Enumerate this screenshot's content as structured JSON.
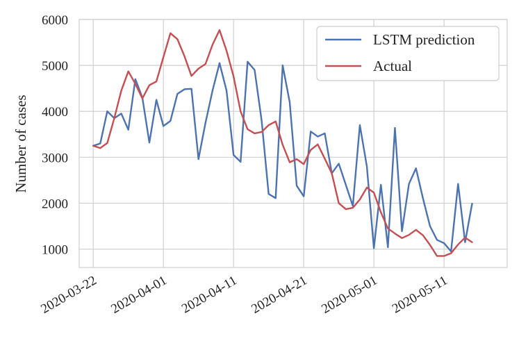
{
  "chart_data": {
    "type": "line",
    "title": "",
    "xlabel": "",
    "ylabel": "Number of cases",
    "x_start": "2020-03-22",
    "x_tick_labels": [
      "2020-03-22",
      "2020-04-01",
      "2020-04-11",
      "2020-04-21",
      "2020-05-01",
      "2020-05-11"
    ],
    "y_ticks": [
      1000,
      2000,
      3000,
      4000,
      5000,
      6000
    ],
    "ylim": [
      600,
      6000
    ],
    "xlim": [
      "2020-03-20",
      "2020-05-20"
    ],
    "grid": true,
    "legend_position": "top-right",
    "series": [
      {
        "name": "LSTM prediction",
        "color": "#4c72b0",
        "values": [
          3250,
          3300,
          4000,
          3850,
          3950,
          3600,
          4700,
          4300,
          3320,
          4250,
          3680,
          3790,
          4380,
          4480,
          4490,
          2960,
          3750,
          4450,
          5050,
          4450,
          3050,
          2900,
          5080,
          4900,
          3800,
          2200,
          2110,
          5000,
          4200,
          2380,
          2150,
          3560,
          3450,
          3520,
          2650,
          2860,
          2400,
          1940,
          3700,
          2800,
          1020,
          2400,
          1040,
          3640,
          1390,
          2420,
          2760,
          2100,
          1500,
          1200,
          1130,
          950,
          2420,
          1150,
          1990
        ]
      },
      {
        "name": "Actual",
        "color": "#c44e52",
        "values": [
          3250,
          3200,
          3310,
          3850,
          4450,
          4870,
          4600,
          4280,
          4570,
          4650,
          5180,
          5700,
          5570,
          5200,
          4770,
          4930,
          5030,
          5450,
          5770,
          5320,
          4760,
          4000,
          3610,
          3520,
          3550,
          3700,
          3780,
          3270,
          2890,
          2960,
          2850,
          3160,
          3280,
          2970,
          2650,
          2000,
          1870,
          1900,
          2080,
          2340,
          2230,
          1800,
          1450,
          1340,
          1240,
          1310,
          1420,
          1300,
          1090,
          850,
          850,
          910,
          1100,
          1250,
          1150
        ]
      }
    ]
  }
}
